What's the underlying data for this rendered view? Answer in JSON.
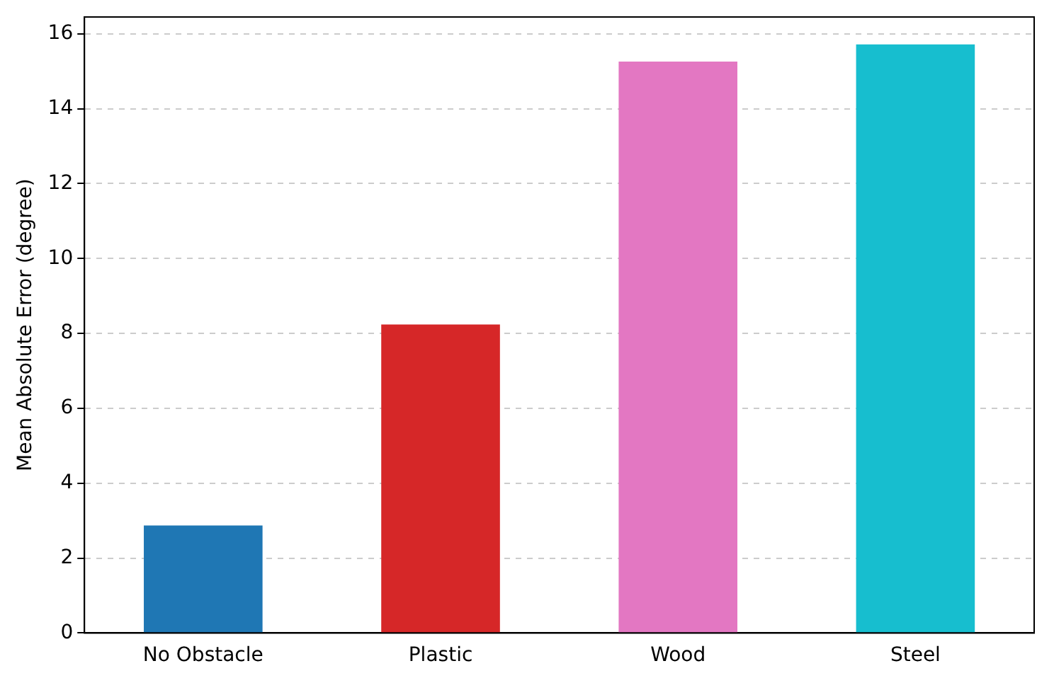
{
  "chart_data": {
    "type": "bar",
    "ylabel": "Mean Absolute Error (degree)",
    "categories": [
      "No Obstacle",
      "Plastic",
      "Wood",
      "Steel"
    ],
    "values": [
      2.87,
      8.24,
      15.26,
      15.72
    ],
    "colors": [
      "#1f77b4",
      "#d62728",
      "#e377c2",
      "#17becf"
    ],
    "ylim": [
      0,
      16.45
    ],
    "yticks": [
      0,
      2,
      4,
      6,
      8,
      10,
      12,
      14,
      16
    ],
    "grid": "y",
    "legend": false
  }
}
